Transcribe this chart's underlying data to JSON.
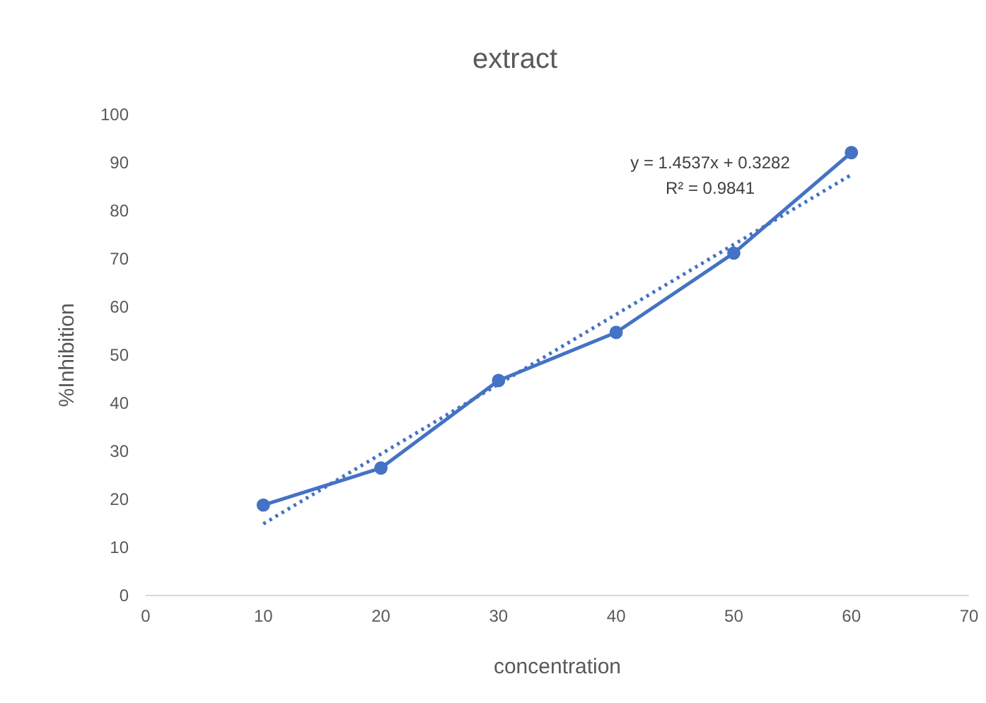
{
  "chart_data": {
    "type": "line",
    "title": "extract",
    "xlabel": "concentration",
    "ylabel": "%Inhibition",
    "xlim": [
      0,
      70
    ],
    "xticks": [
      0,
      10,
      20,
      30,
      40,
      50,
      60,
      70
    ],
    "ylim": [
      0,
      100
    ],
    "yticks": [
      0,
      10,
      20,
      30,
      40,
      50,
      60,
      70,
      80,
      90,
      100
    ],
    "grid": false,
    "marker": "circle",
    "line_style": "solid",
    "series": [
      {
        "color": "#4472c4",
        "x": [
          10,
          20,
          30,
          40,
          50,
          60
        ],
        "values": [
          18.8,
          26.5,
          44.7,
          54.7,
          71.2,
          92.1
        ]
      },
      {
        "color": "#4472c4",
        "x": [
          10,
          60
        ],
        "values": [
          14.9,
          87.5
        ],
        "line_style": "dotted",
        "marker": "none"
      }
    ],
    "annotations": [
      "y = 1.4537x + 0.3282",
      "R² = 0.9841"
    ]
  }
}
